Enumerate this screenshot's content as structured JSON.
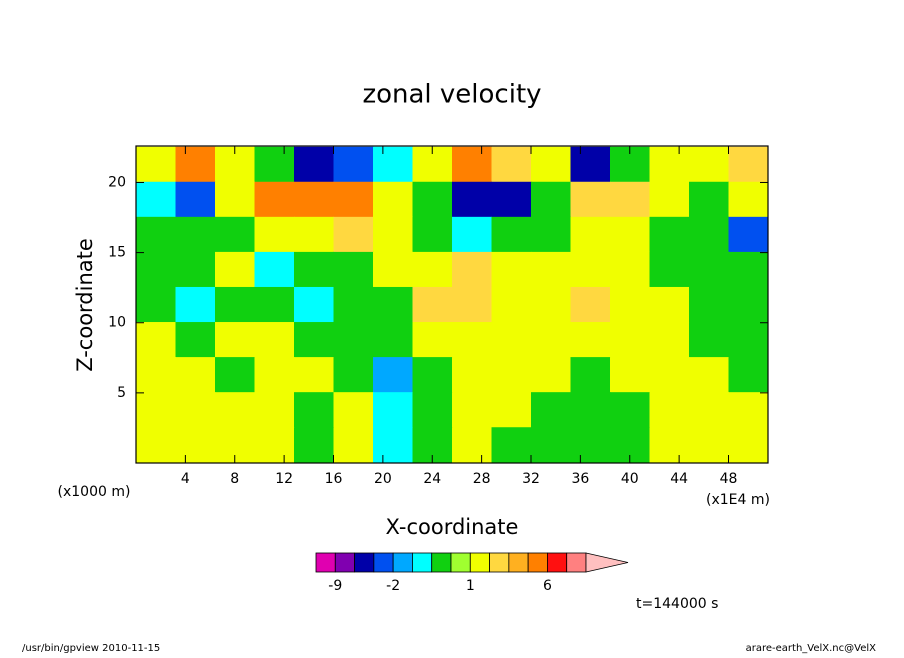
{
  "chart_data": {
    "type": "contour",
    "title": "zonal velocity",
    "x_label": "X-coordinate",
    "y_label": "Z-coordinate",
    "x_unit": "(x1E4 m)",
    "y_unit": "(x1000 m)",
    "xlim": [
      0,
      51.2
    ],
    "ylim": [
      0,
      22.6
    ],
    "xticks": [
      4,
      8,
      12,
      16,
      20,
      24,
      28,
      32,
      36,
      40,
      44,
      48
    ],
    "yticks": [
      5,
      10,
      15,
      20
    ],
    "x": [
      1.6,
      4.8,
      8,
      11.2,
      14.4,
      17.6,
      20.8,
      24,
      27.2,
      30.4,
      33.6,
      36.8,
      40,
      43.2,
      46.4,
      49.6
    ],
    "y": [
      21.3,
      18.8,
      16.3,
      13.8,
      11.3,
      8.8,
      6.3,
      3.8,
      1.3
    ],
    "z": [
      [
        1.5,
        4.5,
        1.5,
        0.2,
        -5,
        -2.5,
        -0.5,
        1.5,
        4.5,
        2.5,
        1.5,
        -4,
        0.2,
        1.5,
        1.5,
        2.5
      ],
      [
        -0.5,
        -2.5,
        1.5,
        5,
        4.5,
        5,
        1.5,
        0.2,
        -4,
        -5,
        0.2,
        2.5,
        2.5,
        1.5,
        0.2,
        1.5
      ],
      [
        0.2,
        0.2,
        0.2,
        1.5,
        1.5,
        2.5,
        1.5,
        0.2,
        -0.5,
        0.2,
        0.2,
        1.5,
        1.5,
        0.2,
        0.2,
        -2.5
      ],
      [
        0.2,
        0.2,
        1.5,
        -0.5,
        0.2,
        0.2,
        1.5,
        1.5,
        2.5,
        1.5,
        1.5,
        1.5,
        1.5,
        0.2,
        0.2,
        0.2
      ],
      [
        0.2,
        -0.5,
        0.2,
        0.2,
        -0.5,
        0.2,
        0.2,
        2.5,
        2.5,
        1.5,
        1.5,
        2.5,
        1.5,
        1.5,
        0.2,
        0.2
      ],
      [
        1.5,
        0.2,
        1.5,
        1.5,
        0.2,
        0.2,
        0.2,
        1.5,
        1.5,
        1.5,
        1.5,
        1.5,
        1.5,
        1.5,
        0.2,
        0.2
      ],
      [
        1.5,
        1.5,
        0.2,
        1.5,
        1.5,
        0.2,
        -1.5,
        0.2,
        1.5,
        1.5,
        1.5,
        0.2,
        1.5,
        1.5,
        1.5,
        0.2
      ],
      [
        1.5,
        1.5,
        1.5,
        1.5,
        0.2,
        1.5,
        -0.5,
        0.2,
        1.5,
        1.5,
        0.2,
        0.2,
        0.2,
        1.5,
        1.5,
        1.5
      ],
      [
        1.5,
        1.5,
        1.5,
        1.5,
        0.2,
        1.5,
        -0.5,
        0.2,
        1.5,
        0.2,
        0.2,
        0.2,
        0.2,
        1.5,
        1.5,
        1.5
      ]
    ],
    "levels": [
      -12,
      -9,
      -6,
      -3,
      -2,
      -1,
      0,
      0.5,
      1,
      2,
      3,
      4,
      6,
      9,
      12
    ],
    "colors": [
      "#e000b0",
      "#8000b0",
      "#0000a8",
      "#0050f0",
      "#00a8ff",
      "#00ffff",
      "#10d010",
      "#a0ff30",
      "#f0ff00",
      "#ffd840",
      "#ffb020",
      "#ff8000",
      "#ff1010",
      "#ff8080",
      "#ffc0c0"
    ],
    "colorbar_ticks": [
      -9,
      -2,
      1,
      6
    ],
    "time_label": "t=144000 s",
    "footer_left": "/usr/bin/gpview  2010-11-15",
    "footer_right": "arare-earth_VelX.nc@VelX"
  }
}
